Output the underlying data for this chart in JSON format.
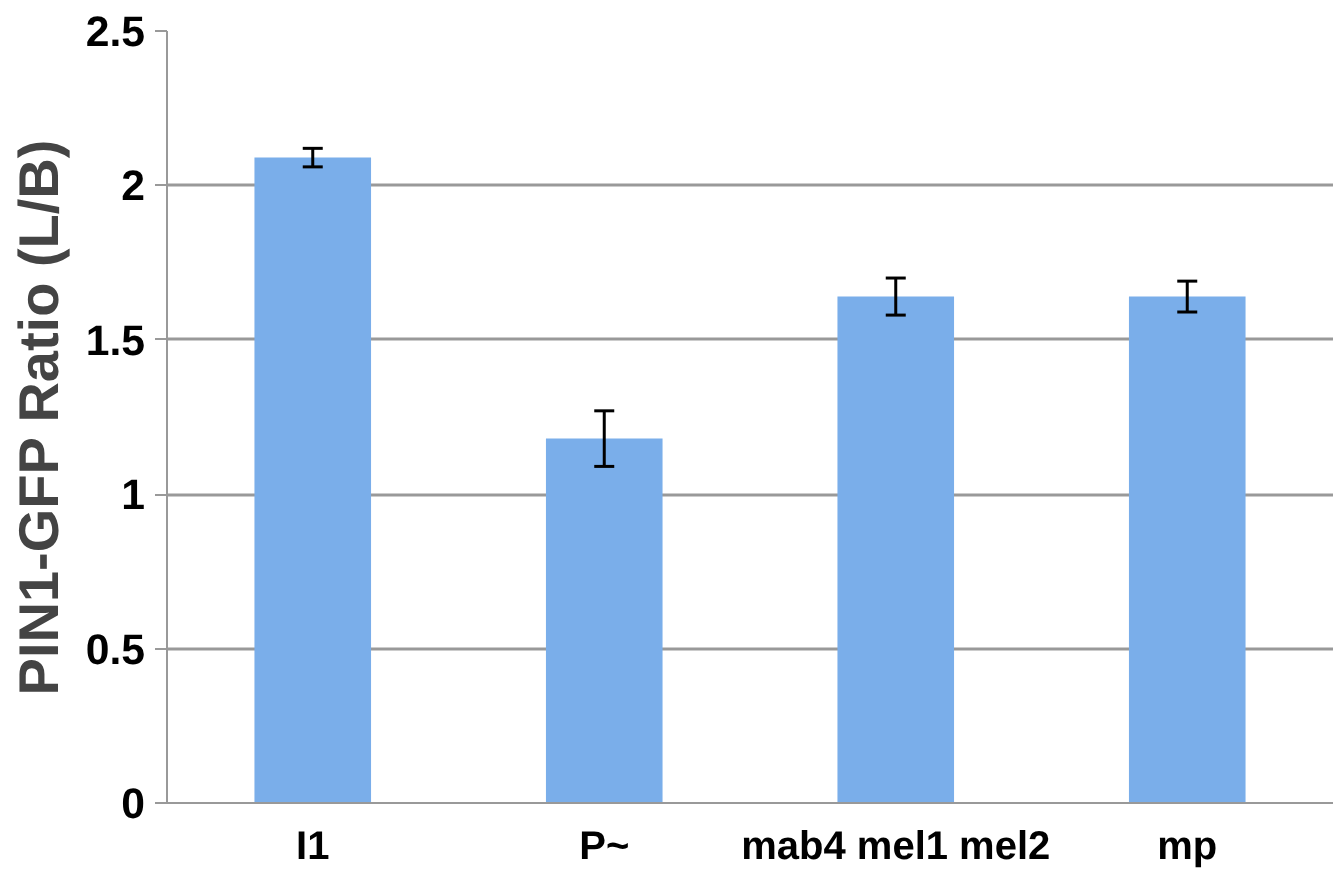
{
  "chart_data": {
    "type": "bar",
    "ylabel": "PIN1-GFP Ratio (L/B)",
    "categories": [
      "I1",
      "P~",
      "mab4 mel1 mel2",
      "mp"
    ],
    "values": [
      2.09,
      1.18,
      1.64,
      1.64
    ],
    "errors": [
      0.03,
      0.09,
      0.06,
      0.05
    ],
    "color": "#7aaeea",
    "ylim": [
      0,
      2.5
    ],
    "yticks": [
      0,
      0.5,
      1,
      1.5,
      2,
      2.5
    ],
    "grid": "y"
  }
}
